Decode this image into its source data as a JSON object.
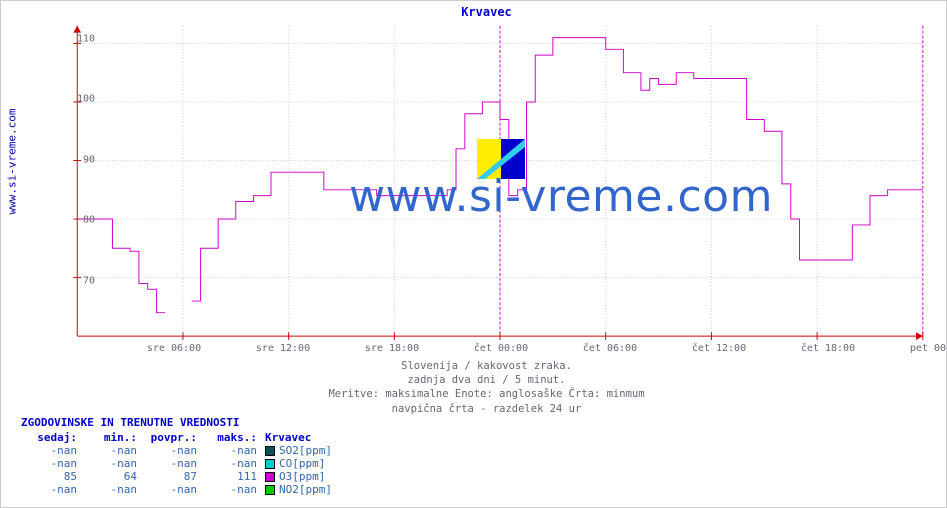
{
  "title": "Krvavec",
  "vlabel": "www.si-vreme.com",
  "watermark": "www.si-vreme.com",
  "captions": [
    "Slovenija / kakovost zraka.",
    "zadnja dva dni / 5 minut.",
    "Meritve: maksimalne  Enote: anglosaške  Črta: minmum",
    "navpična črta - razdelek 24 ur"
  ],
  "chart": {
    "type": "line-step",
    "ylim": [
      60,
      113
    ],
    "yticks": [
      70,
      80,
      90,
      100,
      110
    ],
    "xlim": [
      0,
      48
    ],
    "xticks": [
      {
        "pos": 6,
        "label": "sre 06:00"
      },
      {
        "pos": 12,
        "label": "sre 12:00"
      },
      {
        "pos": 18,
        "label": "sre 18:00"
      },
      {
        "pos": 24,
        "label": "čet 00:00"
      },
      {
        "pos": 30,
        "label": "čet 06:00"
      },
      {
        "pos": 36,
        "label": "čet 12:00"
      },
      {
        "pos": 42,
        "label": "čet 18:00"
      },
      {
        "pos": 48,
        "label": "pet 00:00"
      }
    ],
    "day_divisions": [
      24,
      48
    ],
    "series_color": "#cc00cc",
    "grid_color": "#cccccc",
    "axis_color": "#cc0000",
    "background_color": "#ffffff",
    "line_width": 1,
    "data": [
      {
        "x": 0.0,
        "y": 80
      },
      {
        "x": 2.0,
        "y": 80
      },
      {
        "x": 2.0,
        "y": 75
      },
      {
        "x": 3.0,
        "y": 75
      },
      {
        "x": 3.0,
        "y": 74.5
      },
      {
        "x": 3.5,
        "y": 74.5
      },
      {
        "x": 3.5,
        "y": 69
      },
      {
        "x": 4.0,
        "y": 69
      },
      {
        "x": 4.0,
        "y": 68
      },
      {
        "x": 4.5,
        "y": 68
      },
      {
        "x": 4.5,
        "y": 64
      },
      {
        "x": 5.0,
        "y": 64
      },
      {
        "x": 5.0,
        "y": null
      },
      {
        "x": 6.5,
        "y": null
      },
      {
        "x": 6.5,
        "y": 66
      },
      {
        "x": 7.0,
        "y": 66
      },
      {
        "x": 7.0,
        "y": 75
      },
      {
        "x": 8.0,
        "y": 75
      },
      {
        "x": 8.0,
        "y": 80
      },
      {
        "x": 9.0,
        "y": 80
      },
      {
        "x": 9.0,
        "y": 83
      },
      {
        "x": 10.0,
        "y": 83
      },
      {
        "x": 10.0,
        "y": 84
      },
      {
        "x": 11.0,
        "y": 84
      },
      {
        "x": 11.0,
        "y": 88
      },
      {
        "x": 14.0,
        "y": 88
      },
      {
        "x": 14.0,
        "y": 85
      },
      {
        "x": 17.0,
        "y": 85
      },
      {
        "x": 17.0,
        "y": 84
      },
      {
        "x": 21.0,
        "y": 84
      },
      {
        "x": 21.0,
        "y": 85
      },
      {
        "x": 21.5,
        "y": 85
      },
      {
        "x": 21.5,
        "y": 92
      },
      {
        "x": 22.0,
        "y": 92
      },
      {
        "x": 22.0,
        "y": 98
      },
      {
        "x": 23.0,
        "y": 98
      },
      {
        "x": 23.0,
        "y": 100
      },
      {
        "x": 24.0,
        "y": 100
      },
      {
        "x": 24.0,
        "y": 97
      },
      {
        "x": 24.5,
        "y": 97
      },
      {
        "x": 24.5,
        "y": 84
      },
      {
        "x": 25.0,
        "y": 84
      },
      {
        "x": 25.0,
        "y": 85
      },
      {
        "x": 25.5,
        "y": 85
      },
      {
        "x": 25.5,
        "y": 100
      },
      {
        "x": 26.0,
        "y": 100
      },
      {
        "x": 26.0,
        "y": 108
      },
      {
        "x": 27.0,
        "y": 108
      },
      {
        "x": 27.0,
        "y": 111
      },
      {
        "x": 30.0,
        "y": 111
      },
      {
        "x": 30.0,
        "y": 109
      },
      {
        "x": 31.0,
        "y": 109
      },
      {
        "x": 31.0,
        "y": 105
      },
      {
        "x": 32.0,
        "y": 105
      },
      {
        "x": 32.0,
        "y": 102
      },
      {
        "x": 32.5,
        "y": 102
      },
      {
        "x": 32.5,
        "y": 104
      },
      {
        "x": 33.0,
        "y": 104
      },
      {
        "x": 33.0,
        "y": 103
      },
      {
        "x": 34.0,
        "y": 103
      },
      {
        "x": 34.0,
        "y": 105
      },
      {
        "x": 35.0,
        "y": 105
      },
      {
        "x": 35.0,
        "y": 104
      },
      {
        "x": 38.0,
        "y": 104
      },
      {
        "x": 38.0,
        "y": 97
      },
      {
        "x": 39.0,
        "y": 97
      },
      {
        "x": 39.0,
        "y": 95
      },
      {
        "x": 40.0,
        "y": 95
      },
      {
        "x": 40.0,
        "y": 86
      },
      {
        "x": 40.5,
        "y": 86
      },
      {
        "x": 40.5,
        "y": 80
      },
      {
        "x": 41.0,
        "y": 80
      },
      {
        "x": 41.0,
        "y": 73
      },
      {
        "x": 44.0,
        "y": 73
      },
      {
        "x": 44.0,
        "y": 79
      },
      {
        "x": 45.0,
        "y": 79
      },
      {
        "x": 45.0,
        "y": 84
      },
      {
        "x": 46.0,
        "y": 84
      },
      {
        "x": 46.0,
        "y": 85
      },
      {
        "x": 48.0,
        "y": 85
      }
    ]
  },
  "table": {
    "title": "ZGODOVINSKE IN TRENUTNE VREDNOSTI",
    "headers": [
      "sedaj:",
      "min.:",
      "povpr.:",
      "maks.:",
      "Krvavec"
    ],
    "rows": [
      {
        "sedaj": "-nan",
        "min": "-nan",
        "povpr": "-nan",
        "maks": "-nan",
        "swatch": "#005555",
        "label": "SO2[ppm]"
      },
      {
        "sedaj": "-nan",
        "min": "-nan",
        "povpr": "-nan",
        "maks": "-nan",
        "swatch": "#00cccc",
        "label": "CO[ppm]"
      },
      {
        "sedaj": "85",
        "min": "64",
        "povpr": "87",
        "maks": "111",
        "swatch": "#cc00cc",
        "label": "O3[ppm]"
      },
      {
        "sedaj": "-nan",
        "min": "-nan",
        "povpr": "-nan",
        "maks": "-nan",
        "swatch": "#00cc00",
        "label": "NO2[ppm]"
      }
    ]
  }
}
